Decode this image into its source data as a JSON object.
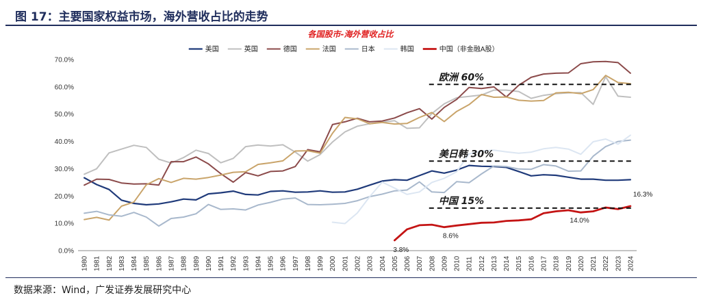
{
  "figure": {
    "title": "图 17：主要国家权益市场，海外营收占比的走势",
    "source": "数据来源：Wind，广发证券发展研究中心"
  },
  "chart_data": {
    "type": "line",
    "title": "各国股市-海外营收占比",
    "xlabel": "",
    "ylabel": "",
    "ylim": [
      0,
      70
    ],
    "y_ticks": [
      "0.0%",
      "10.0%",
      "20.0%",
      "30.0%",
      "40.0%",
      "50.0%",
      "60.0%",
      "70.0%"
    ],
    "y_tick_values": [
      0,
      10,
      20,
      30,
      40,
      50,
      60,
      70
    ],
    "legend_position": "top",
    "categories": [
      "1980",
      "1981",
      "1982",
      "1983",
      "1984",
      "1985",
      "1986",
      "1987",
      "1988",
      "1989",
      "1990",
      "1991",
      "1992",
      "1993",
      "1994",
      "1995",
      "1996",
      "1997",
      "1998",
      "1999",
      "2000",
      "2001",
      "2002",
      "2003",
      "2004",
      "2005",
      "2006",
      "2007",
      "2008",
      "2009",
      "2010",
      "2011",
      "2012",
      "2013",
      "2014",
      "2015",
      "2016",
      "2017",
      "2018",
      "2019",
      "2020",
      "2021",
      "2022",
      "2023",
      "2024"
    ],
    "series": [
      {
        "name": "美国",
        "color": "#1f3a7a",
        "width": 2.2,
        "values": [
          26.7,
          24.2,
          22.4,
          18.5,
          17.3,
          16.8,
          17.1,
          17.9,
          18.9,
          18.6,
          20.8,
          21.2,
          21.8,
          20.6,
          20.4,
          21.7,
          21.9,
          21.4,
          21.5,
          21.9,
          21.4,
          21.5,
          22.5,
          24.0,
          25.5,
          26.0,
          25.8,
          27.5,
          29.2,
          28.4,
          29.5,
          31.2,
          30.9,
          30.8,
          30.5,
          29.0,
          27.4,
          27.8,
          27.6,
          26.9,
          26.2,
          26.2,
          25.8,
          25.8,
          26.0
        ]
      },
      {
        "name": "英国",
        "color": "#bfbfbf",
        "width": 2.0,
        "values": [
          28.0,
          30.0,
          35.8,
          37.2,
          38.6,
          37.8,
          33.5,
          32.1,
          34.1,
          36.8,
          35.6,
          32.2,
          33.8,
          38.1,
          38.7,
          38.3,
          38.8,
          36.1,
          32.8,
          35.2,
          39.8,
          43.5,
          45.6,
          46.5,
          47.1,
          47.6,
          44.8,
          45.0,
          50.2,
          53.8,
          56.0,
          56.5,
          57.0,
          58.8,
          58.8,
          58.3,
          55.8,
          56.9,
          57.5,
          57.8,
          57.9,
          53.6,
          63.7,
          56.6,
          56.2
        ]
      },
      {
        "name": "德国",
        "color": "#8b4a4a",
        "width": 2.0,
        "values": [
          24.0,
          26.2,
          26.1,
          24.8,
          24.4,
          24.5,
          24.0,
          32.6,
          32.6,
          34.3,
          31.8,
          28.2,
          25.1,
          28.6,
          27.4,
          29.0,
          29.2,
          30.8,
          37.0,
          36.2,
          46.2,
          47.2,
          48.5,
          47.2,
          47.5,
          48.6,
          50.5,
          52.0,
          48.2,
          52.5,
          55.4,
          59.8,
          59.4,
          60.0,
          56.3,
          60.6,
          63.5,
          64.7,
          65.0,
          65.1,
          68.5,
          69.2,
          69.3,
          68.9,
          65.0
        ]
      },
      {
        "name": "法国",
        "color": "#c9a46a",
        "width": 2.0,
        "values": [
          11.4,
          12.2,
          11.2,
          16.3,
          17.8,
          24.1,
          26.4,
          25.0,
          26.5,
          26.2,
          26.8,
          27.7,
          28.7,
          28.9,
          31.6,
          32.2,
          32.9,
          36.5,
          36.6,
          35.7,
          43.0,
          48.8,
          48.3,
          46.5,
          47.0,
          46.4,
          46.6,
          48.8,
          50.6,
          47.3,
          51.0,
          53.5,
          57.2,
          56.2,
          56.3,
          55.1,
          54.8,
          55.0,
          57.8,
          58.0,
          57.5,
          59.0,
          64.2,
          61.6,
          61.2
        ]
      },
      {
        "name": "日本",
        "color": "#a8b8cc",
        "width": 2.0,
        "values": [
          13.7,
          14.4,
          13.1,
          12.6,
          14.0,
          12.3,
          9.0,
          11.8,
          12.3,
          13.5,
          16.9,
          15.1,
          15.3,
          14.9,
          16.7,
          17.7,
          18.9,
          19.3,
          16.9,
          16.8,
          17.0,
          17.3,
          18.3,
          19.8,
          20.7,
          21.9,
          22.2,
          25.2,
          21.5,
          21.3,
          25.3,
          24.9,
          28.1,
          31.0,
          30.8,
          29.9,
          29.8,
          31.5,
          31.0,
          29.1,
          29.2,
          34.6,
          38.1,
          40.0,
          40.5
        ]
      },
      {
        "name": "韩国",
        "color": "#dce6f2",
        "width": 2.0,
        "values": [
          null,
          null,
          null,
          null,
          null,
          null,
          null,
          null,
          null,
          null,
          null,
          null,
          null,
          null,
          null,
          null,
          null,
          null,
          null,
          null,
          10.4,
          9.9,
          13.8,
          19.8,
          25.1,
          22.9,
          20.6,
          21.5,
          25.0,
          26.5,
          28.9,
          35.4,
          36.5,
          36.8,
          36.2,
          35.7,
          36.1,
          37.3,
          37.8,
          37.2,
          35.3,
          39.9,
          40.9,
          39.0,
          42.3
        ]
      },
      {
        "name": "中国（非金融A股）",
        "color": "#c41414",
        "width": 2.8,
        "values": [
          null,
          null,
          null,
          null,
          null,
          null,
          null,
          null,
          null,
          null,
          null,
          null,
          null,
          null,
          null,
          null,
          null,
          null,
          null,
          null,
          null,
          null,
          null,
          null,
          null,
          3.8,
          7.8,
          9.3,
          9.5,
          8.6,
          9.2,
          9.7,
          10.2,
          10.3,
          10.9,
          11.1,
          11.5,
          13.7,
          14.4,
          14.8,
          14.0,
          14.4,
          15.8,
          15.2,
          16.3
        ]
      }
    ],
    "reference_lines": [
      {
        "label": "欧洲 60%",
        "value": 60.9,
        "from": "2008",
        "to": "2024"
      },
      {
        "label": "美日韩 30%",
        "value": 32.8,
        "from": "2008",
        "to": "2024"
      },
      {
        "label": "中国 15%",
        "value": 15.6,
        "from": "2008",
        "to": "2024"
      }
    ],
    "data_labels": [
      {
        "text": "3.8%",
        "year": "2005",
        "value": 3.8
      },
      {
        "text": "8.6%",
        "year": "2009",
        "value": 8.6
      },
      {
        "text": "14.0%",
        "year": "2020",
        "value": 14.0
      },
      {
        "text": "16.3%",
        "year": "2024",
        "value": 16.3
      }
    ]
  }
}
